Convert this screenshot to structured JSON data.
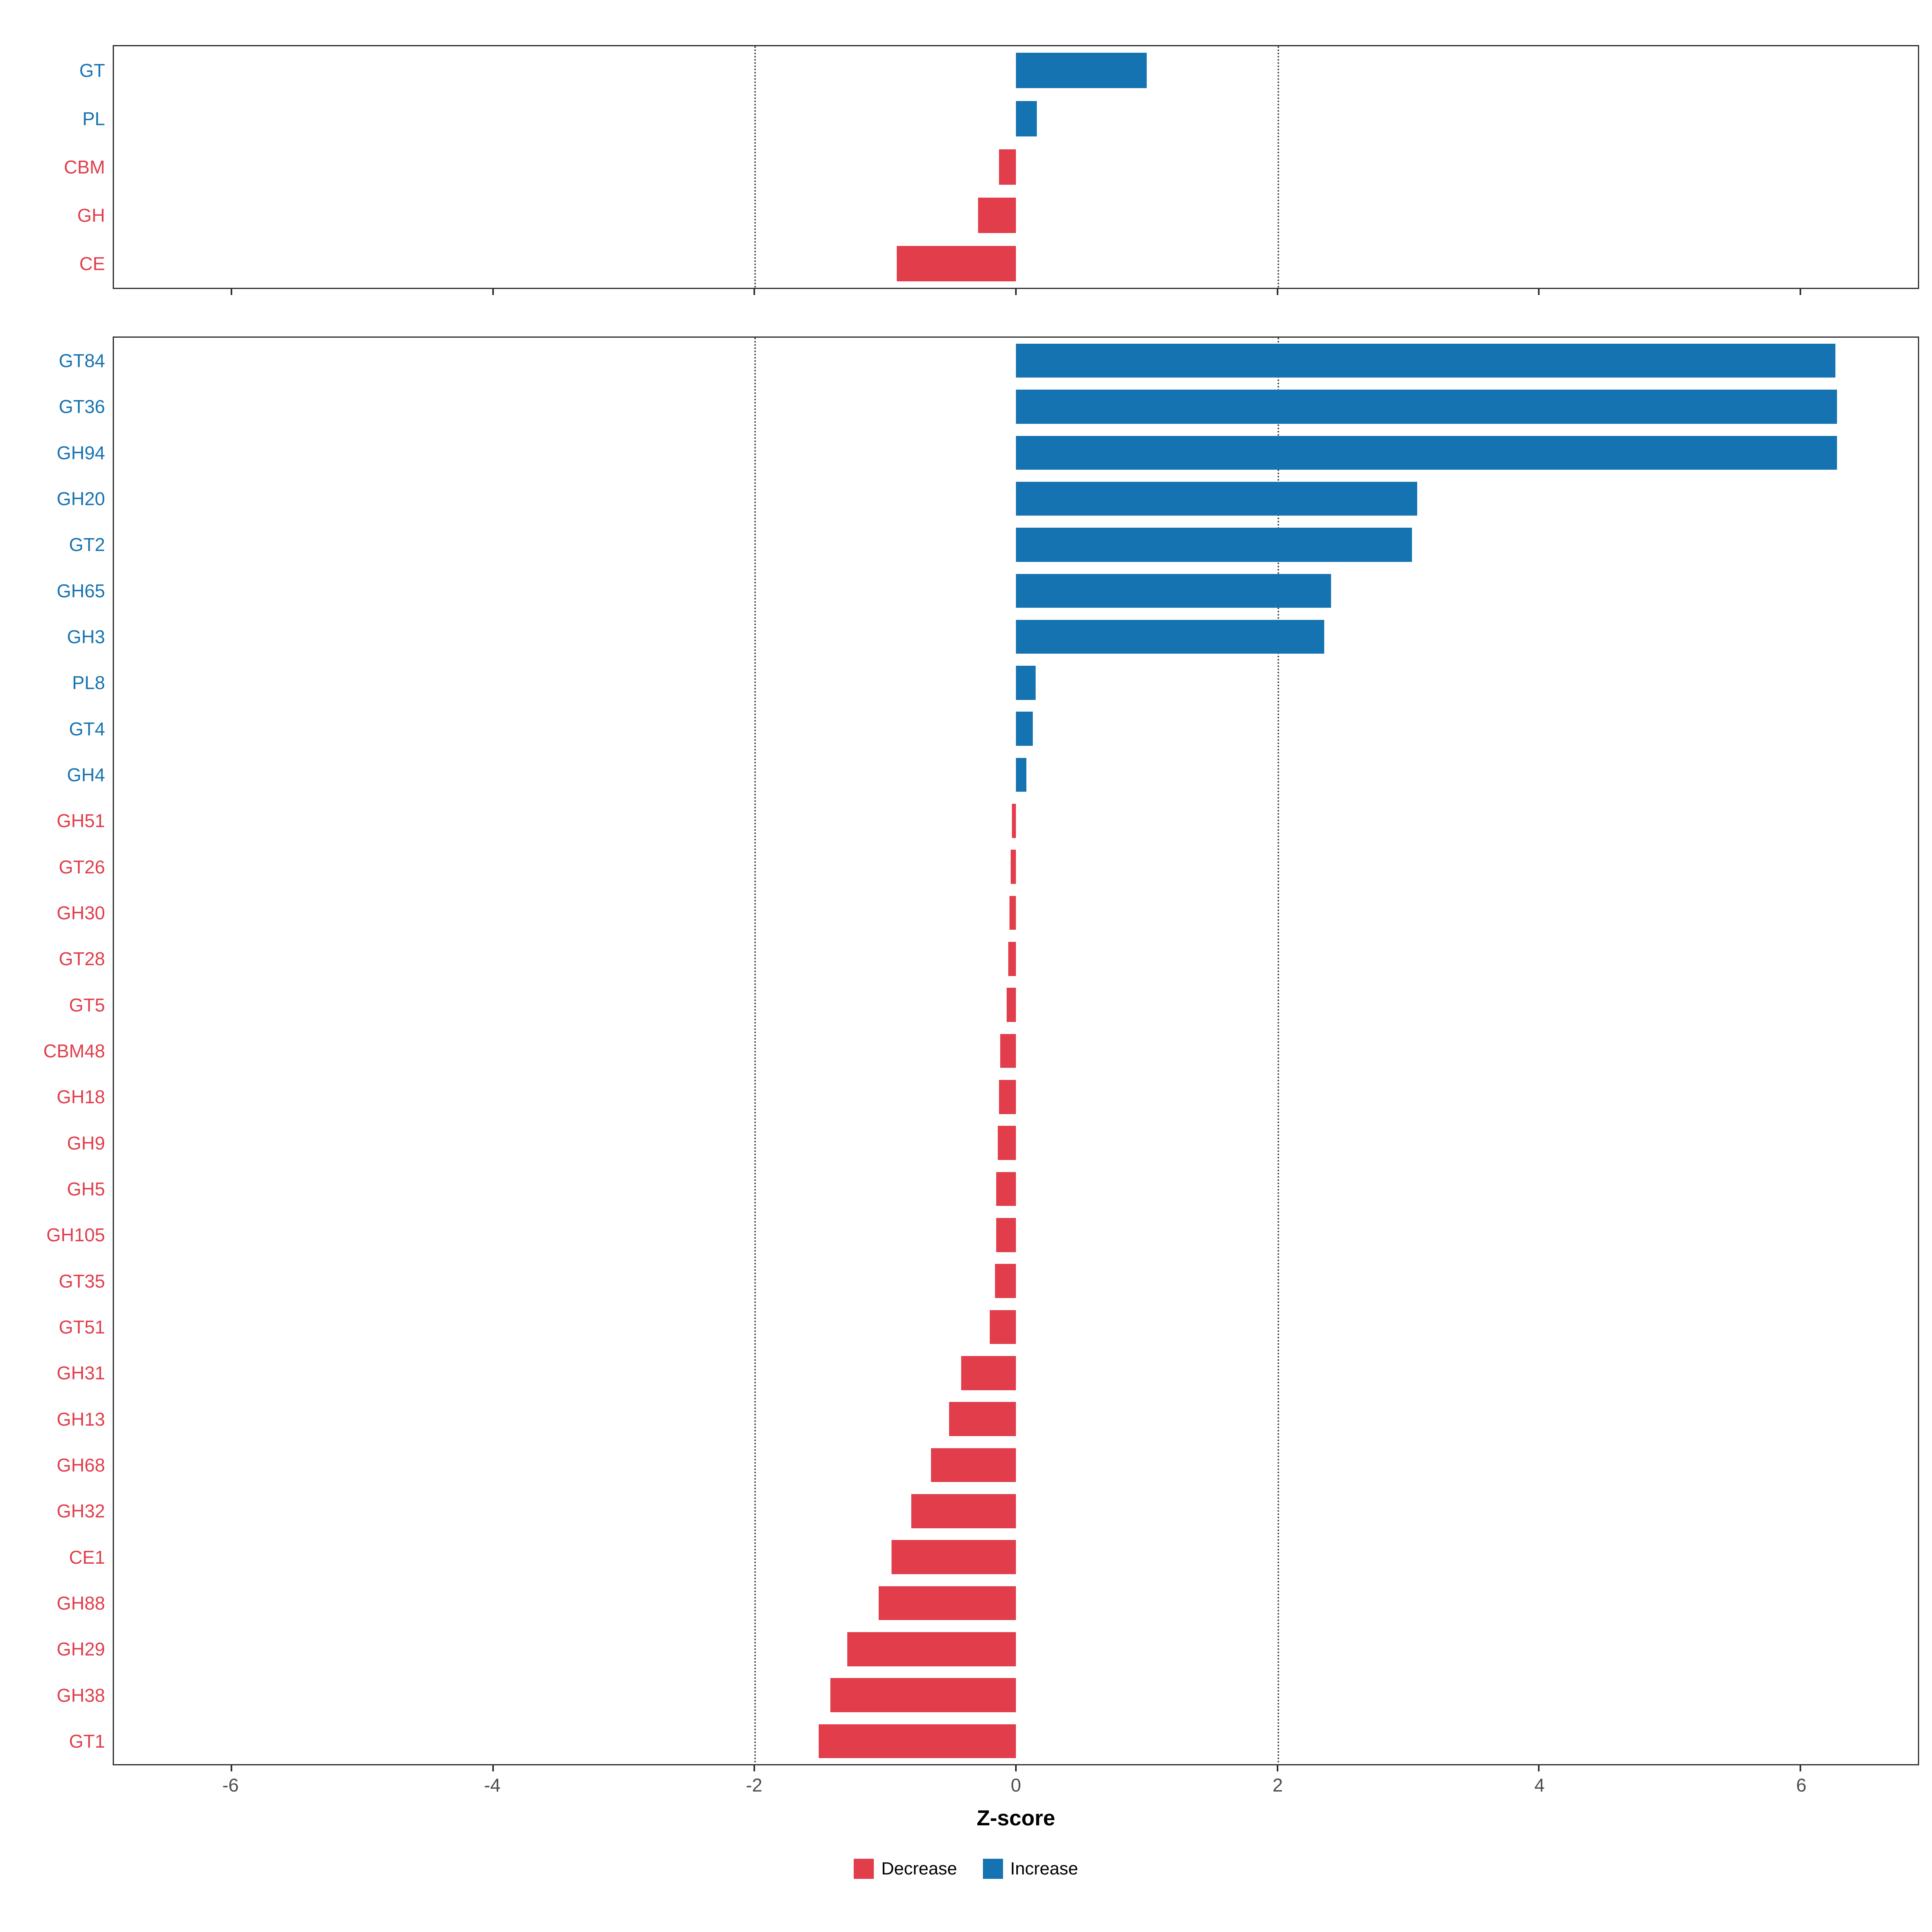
{
  "axis": {
    "label": "Z-score",
    "ticks": [
      "-6",
      "-4",
      "-2",
      "0",
      "2",
      "4",
      "6"
    ],
    "tick_values": [
      -6,
      -4,
      -2,
      0,
      2,
      4,
      6
    ],
    "xlim": [
      -6.9,
      6.9
    ],
    "dotted_gridlines": [
      -2,
      2
    ]
  },
  "colors": {
    "increase": "#1673b1",
    "decrease": "#e13d4b",
    "axis_text": "#4d4d4d",
    "panel_border": "#2f2f2f",
    "gridline": "#3f3f3f"
  },
  "legend": {
    "position": "bottom",
    "items": [
      {
        "label": "Decrease",
        "key": "decrease"
      },
      {
        "label": "Increase",
        "key": "increase"
      }
    ]
  },
  "chart_data": [
    {
      "type": "bar",
      "orientation": "horizontal",
      "panel": "cazyme-classes",
      "xlabel": "Z-score",
      "xlim": [
        -6.9,
        6.9
      ],
      "gridlines_dotted_at": [
        -2,
        2
      ],
      "legend_position": "bottom",
      "categories": [
        "GT",
        "PL",
        "CBM",
        "GH",
        "CE"
      ],
      "values": [
        1.0,
        0.16,
        -0.13,
        -0.29,
        -0.91
      ]
    },
    {
      "type": "bar",
      "orientation": "horizontal",
      "panel": "cazyme-families",
      "xlabel": "Z-score",
      "xlim": [
        -6.9,
        6.9
      ],
      "gridlines_dotted_at": [
        -2,
        2
      ],
      "legend_position": "bottom",
      "categories": [
        "GT84",
        "GT36",
        "GH94",
        "GH20",
        "GT2",
        "GH65",
        "GH3",
        "PL8",
        "GT4",
        "GH4",
        "GH51",
        "GT26",
        "GH30",
        "GT28",
        "GT5",
        "CBM48",
        "GH18",
        "GH9",
        "GH5",
        "GH105",
        "GT35",
        "GT51",
        "GH31",
        "GH13",
        "GH68",
        "GH32",
        "CE1",
        "GH88",
        "GH29",
        "GH38",
        "GT1"
      ],
      "values": [
        6.27,
        6.28,
        6.28,
        3.07,
        3.03,
        2.41,
        2.36,
        0.15,
        0.13,
        0.08,
        -0.03,
        -0.04,
        -0.05,
        -0.06,
        -0.07,
        -0.12,
        -0.13,
        -0.14,
        -0.15,
        -0.15,
        -0.16,
        -0.2,
        -0.42,
        -0.51,
        -0.65,
        -0.8,
        -0.95,
        -1.05,
        -1.29,
        -1.42,
        -1.51
      ]
    }
  ]
}
